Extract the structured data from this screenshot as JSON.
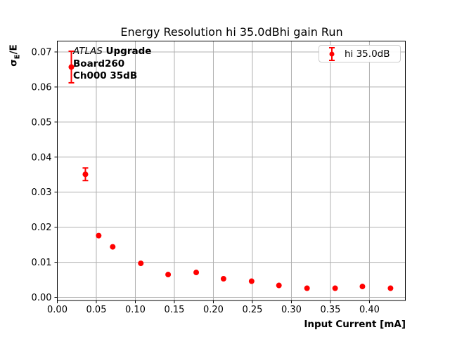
{
  "colors": {
    "series_red": "#ff0000",
    "grid": "#b0b0b0",
    "frame": "#000000",
    "legend_border": "#cccccc",
    "background": "#ffffff"
  },
  "chart_data": {
    "type": "scatter",
    "title": "Energy Resolution hi 35.0dBhi gain Run",
    "xlabel": "Input Current [mA]",
    "ylabel": "σE/E",
    "ylabel_parts": {
      "sigma": "σ",
      "sub": "E",
      "rest": "/E"
    },
    "xlim": [
      0,
      0.446
    ],
    "ylim": [
      -0.0009,
      0.0731
    ],
    "grid": true,
    "x_ticks": [
      0.0,
      0.05,
      0.1,
      0.15,
      0.2,
      0.25,
      0.3,
      0.35,
      0.4
    ],
    "x_tick_labels": [
      "0.00",
      "0.05",
      "0.10",
      "0.15",
      "0.20",
      "0.25",
      "0.30",
      "0.35",
      "0.40"
    ],
    "y_ticks": [
      0.0,
      0.01,
      0.02,
      0.03,
      0.04,
      0.05,
      0.06,
      0.07
    ],
    "y_tick_labels": [
      "0.00",
      "0.01",
      "0.02",
      "0.03",
      "0.04",
      "0.05",
      "0.06",
      "0.07"
    ],
    "legend": {
      "label": "hi 35.0dB",
      "position": "upper right",
      "marker": "errorbar-point"
    },
    "annotation": {
      "line1_italic": "ATLAS",
      "line1_bold": "Upgrade",
      "line2": "Board260",
      "line3": "Ch000 35dB"
    },
    "series": [
      {
        "name": "hi 35.0dB",
        "color": "#ff0000",
        "marker": "circle",
        "points": [
          {
            "x": 0.018,
            "y": 0.0657,
            "yerr": 0.0045
          },
          {
            "x": 0.036,
            "y": 0.0351,
            "yerr": 0.0018
          },
          {
            "x": 0.053,
            "y": 0.0176,
            "yerr": 0
          },
          {
            "x": 0.071,
            "y": 0.0144,
            "yerr": 0
          },
          {
            "x": 0.107,
            "y": 0.0097,
            "yerr": 0
          },
          {
            "x": 0.142,
            "y": 0.0065,
            "yerr": 0
          },
          {
            "x": 0.178,
            "y": 0.0071,
            "yerr": 0
          },
          {
            "x": 0.213,
            "y": 0.0053,
            "yerr": 0
          },
          {
            "x": 0.249,
            "y": 0.0046,
            "yerr": 0
          },
          {
            "x": 0.284,
            "y": 0.0034,
            "yerr": 0
          },
          {
            "x": 0.32,
            "y": 0.0026,
            "yerr": 0
          },
          {
            "x": 0.356,
            "y": 0.0026,
            "yerr": 0
          },
          {
            "x": 0.391,
            "y": 0.0031,
            "yerr": 0
          },
          {
            "x": 0.427,
            "y": 0.0026,
            "yerr": 0
          }
        ]
      }
    ]
  }
}
